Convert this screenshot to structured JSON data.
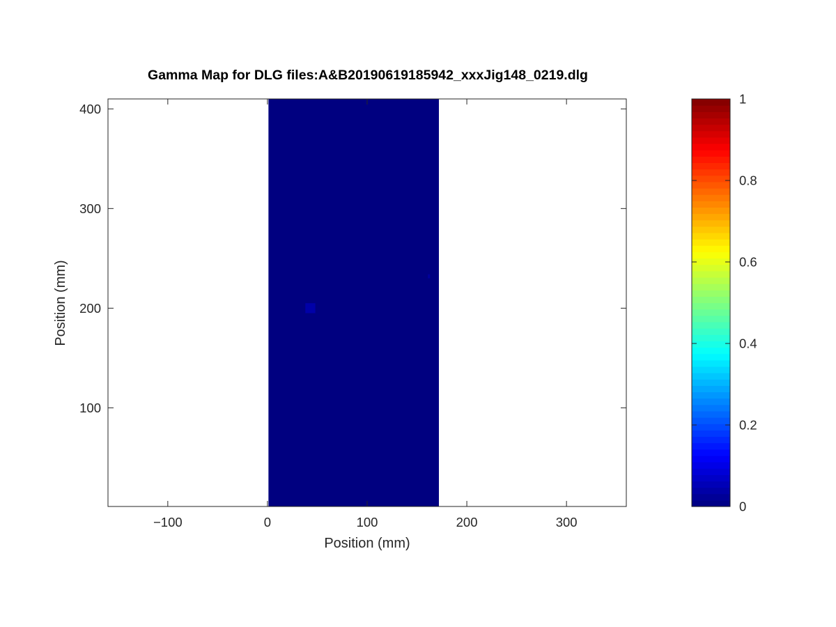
{
  "chart_data": {
    "type": "heatmap",
    "title": "Gamma Map for DLG files:A&B20190619185942_xxxJig148_0219.dlg",
    "xlabel": "Position (mm)",
    "ylabel": "Position (mm)",
    "xlim": [
      -160,
      360
    ],
    "ylim": [
      1,
      410
    ],
    "x_ticks": [
      -100,
      0,
      100,
      200,
      300
    ],
    "x_tick_labels": [
      "−100",
      "0",
      "100",
      "200",
      "300"
    ],
    "y_ticks": [
      100,
      200,
      300,
      400
    ],
    "y_tick_labels": [
      "100",
      "200",
      "300",
      "400"
    ],
    "grid": false,
    "colormap": "jet",
    "colorbar": {
      "range": [
        0,
        1
      ],
      "ticks": [
        0,
        0.2,
        0.4,
        0.6,
        0.8,
        1
      ],
      "tick_labels": [
        "0",
        "0.2",
        "0.4",
        "0.6",
        "0.8",
        "1"
      ],
      "levels": 64
    },
    "field_region": {
      "x_range": [
        1,
        172
      ],
      "y_range": [
        1,
        410
      ],
      "gamma": 0.0
    },
    "hotspots": [
      {
        "x": 43,
        "y": 200,
        "x_width": 10,
        "y_height": 10,
        "gamma": 0.04
      },
      {
        "x": 162,
        "y": 232,
        "x_width": 2,
        "y_height": 4,
        "gamma": 0.03
      }
    ]
  }
}
